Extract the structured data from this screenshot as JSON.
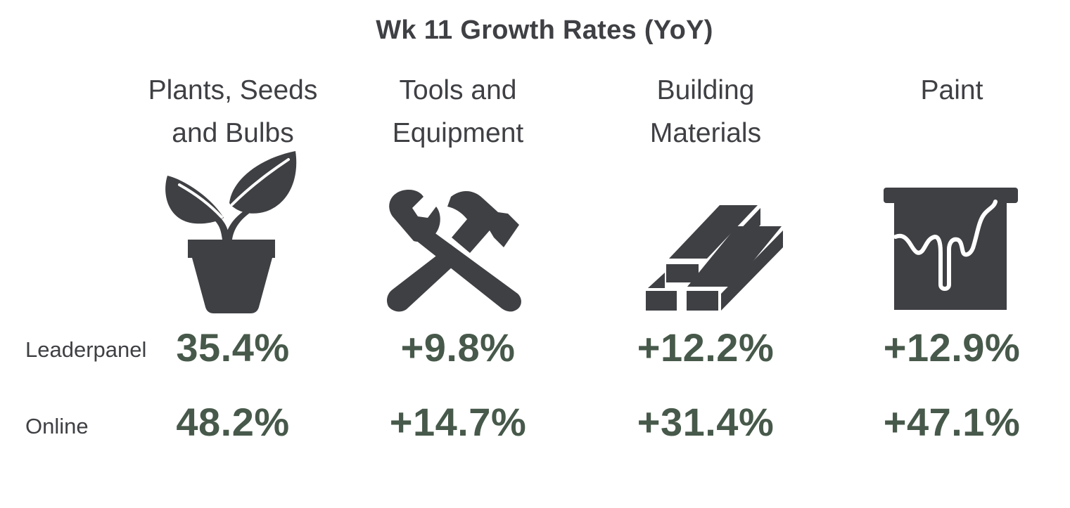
{
  "title": "Wk 11 Growth Rates (YoY)",
  "categories": [
    {
      "line1": "Plants, Seeds",
      "line2": "and Bulbs",
      "icon": "plant-pot-icon"
    },
    {
      "line1": "Tools and",
      "line2": "Equipment",
      "icon": "wrench-hammer-icon"
    },
    {
      "line1": "Building",
      "line2": "Materials",
      "icon": "lumber-beams-icon"
    },
    {
      "line1": "Paint",
      "line2": "",
      "icon": "paint-bucket-icon"
    }
  ],
  "rows": [
    {
      "label": "Leaderpanel",
      "values": [
        "35.4%",
        "+9.8%",
        "+12.2%",
        "+12.9%"
      ]
    },
    {
      "label": "Online",
      "values": [
        "48.2%",
        "+14.7%",
        "+31.4%",
        "+47.1%"
      ]
    }
  ],
  "colors": {
    "text": "#3f4044",
    "value": "#47594a",
    "icon": "#3f4044"
  }
}
